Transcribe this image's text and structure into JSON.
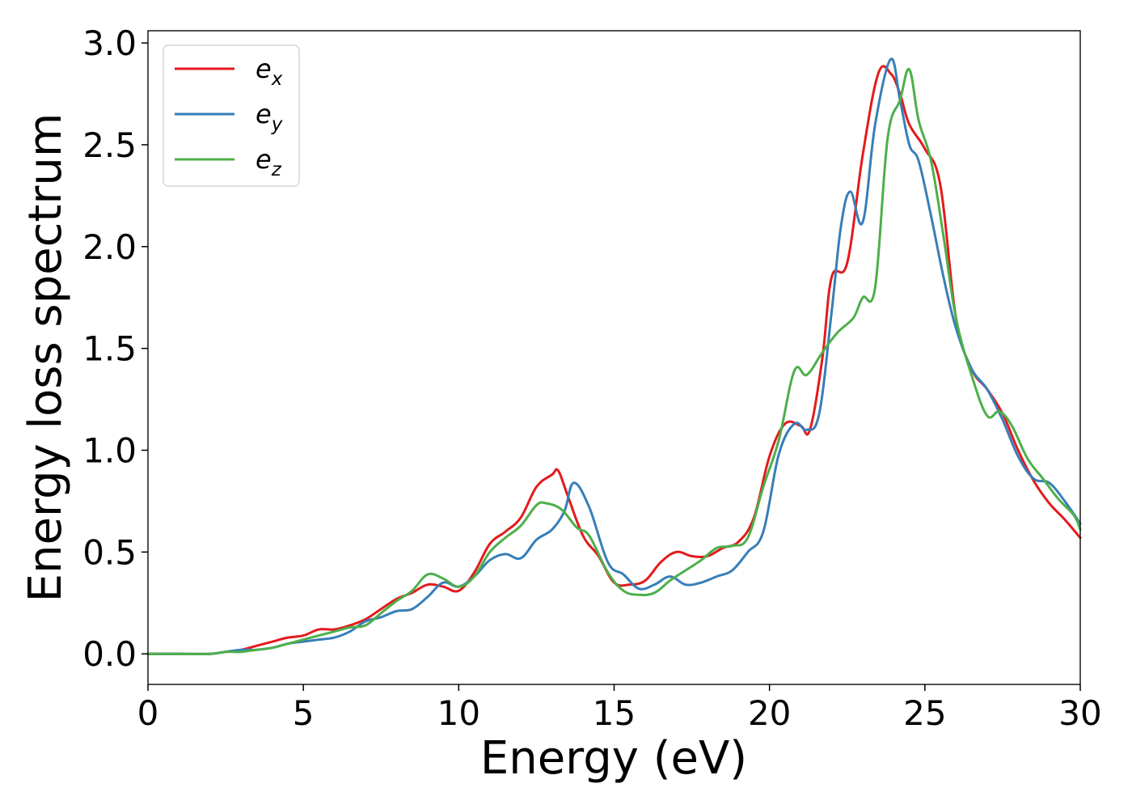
{
  "chart_data": {
    "type": "line",
    "title": "",
    "xlabel": "Energy (eV)",
    "ylabel": "Energy loss spectrum",
    "xlim": [
      0,
      30
    ],
    "ylim": [
      -0.15,
      3.06
    ],
    "xticks": [
      0,
      5,
      10,
      15,
      20,
      25,
      30
    ],
    "xtick_labels": [
      "0",
      "5",
      "10",
      "15",
      "20",
      "25",
      "30"
    ],
    "yticks": [
      0.0,
      0.5,
      1.0,
      1.5,
      2.0,
      2.5,
      3.0
    ],
    "ytick_labels": [
      "0.0",
      "0.5",
      "1.0",
      "1.5",
      "2.0",
      "2.5",
      "3.0"
    ],
    "grid": false,
    "legend_position": "top-left",
    "series": [
      {
        "name": "e",
        "subscript": "x",
        "color": "#e41a1c",
        "x": [
          0,
          1,
          2,
          2.5,
          3,
          3.5,
          4,
          4.5,
          5,
          5.5,
          6,
          6.5,
          7,
          7.5,
          8,
          8.5,
          9,
          9.5,
          10,
          10.5,
          11,
          11.5,
          12,
          12.5,
          13,
          13.2,
          13.5,
          14,
          14.5,
          15,
          15.5,
          16,
          16.5,
          17,
          17.5,
          18,
          18.5,
          19,
          19.5,
          20,
          20.5,
          21,
          21.3,
          21.7,
          22,
          22.5,
          23,
          23.5,
          23.9,
          24.2,
          24.5,
          25,
          25.5,
          26,
          26.5,
          27,
          27.5,
          28,
          28.5,
          29,
          29.5,
          30
        ],
        "y": [
          0,
          0,
          0,
          0.01,
          0.02,
          0.04,
          0.06,
          0.08,
          0.09,
          0.12,
          0.12,
          0.14,
          0.17,
          0.22,
          0.27,
          0.3,
          0.34,
          0.33,
          0.31,
          0.4,
          0.54,
          0.6,
          0.67,
          0.82,
          0.88,
          0.9,
          0.78,
          0.58,
          0.48,
          0.35,
          0.34,
          0.36,
          0.45,
          0.5,
          0.48,
          0.48,
          0.52,
          0.55,
          0.67,
          0.97,
          1.13,
          1.12,
          1.1,
          1.45,
          1.85,
          1.92,
          2.45,
          2.85,
          2.85,
          2.75,
          2.6,
          2.48,
          2.3,
          1.65,
          1.4,
          1.3,
          1.18,
          1.0,
          0.85,
          0.74,
          0.66,
          0.57
        ]
      },
      {
        "name": "e",
        "subscript": "y",
        "color": "#377eb8",
        "x": [
          0,
          1,
          2,
          2.5,
          3,
          3.5,
          4,
          4.5,
          5,
          5.5,
          6,
          6.5,
          7,
          7.5,
          8,
          8.5,
          9,
          9.5,
          10,
          10.5,
          11,
          11.5,
          12,
          12.5,
          13,
          13.4,
          13.7,
          14.2,
          14.8,
          15.3,
          15.8,
          16.3,
          16.8,
          17.3,
          17.8,
          18.3,
          18.8,
          19.3,
          19.8,
          20.3,
          20.8,
          21.2,
          21.6,
          22,
          22.3,
          22.6,
          23,
          23.4,
          23.9,
          24.2,
          24.5,
          24.8,
          25.2,
          25.6,
          26,
          26.5,
          27,
          27.5,
          28,
          28.5,
          29,
          29.5,
          30
        ],
        "y": [
          0,
          0,
          0,
          0.01,
          0.02,
          0.02,
          0.03,
          0.05,
          0.06,
          0.07,
          0.08,
          0.11,
          0.16,
          0.18,
          0.21,
          0.22,
          0.28,
          0.35,
          0.33,
          0.38,
          0.46,
          0.49,
          0.47,
          0.56,
          0.61,
          0.7,
          0.84,
          0.72,
          0.45,
          0.39,
          0.32,
          0.34,
          0.38,
          0.34,
          0.35,
          0.38,
          0.41,
          0.5,
          0.6,
          0.98,
          1.13,
          1.1,
          1.18,
          1.68,
          2.1,
          2.27,
          2.12,
          2.6,
          2.92,
          2.72,
          2.5,
          2.42,
          2.15,
          1.85,
          1.6,
          1.4,
          1.3,
          1.15,
          0.97,
          0.86,
          0.84,
          0.75,
          0.64
        ]
      },
      {
        "name": "e",
        "subscript": "z",
        "color": "#4daf4a",
        "x": [
          0,
          1,
          2,
          2.5,
          3,
          3.5,
          4,
          4.5,
          5,
          5.5,
          6,
          6.5,
          7,
          7.5,
          8,
          8.5,
          9,
          9.5,
          10,
          10.5,
          11,
          11.5,
          12,
          12.5,
          12.8,
          13.3,
          13.8,
          14.2,
          14.8,
          15.3,
          15.8,
          16.3,
          16.8,
          17.3,
          17.8,
          18.3,
          18.8,
          19.3,
          19.8,
          20.3,
          20.8,
          21.2,
          21.7,
          22.2,
          22.7,
          23,
          23.4,
          23.8,
          24.2,
          24.5,
          24.8,
          25.2,
          25.6,
          26,
          26.5,
          27,
          27.4,
          27.8,
          28.3,
          28.8,
          29.3,
          29.8,
          30
        ],
        "y": [
          0,
          0,
          0,
          0.01,
          0.01,
          0.02,
          0.03,
          0.05,
          0.07,
          0.09,
          0.11,
          0.13,
          0.14,
          0.2,
          0.26,
          0.31,
          0.39,
          0.37,
          0.33,
          0.38,
          0.5,
          0.57,
          0.63,
          0.73,
          0.74,
          0.71,
          0.62,
          0.58,
          0.4,
          0.31,
          0.29,
          0.3,
          0.36,
          0.41,
          0.46,
          0.52,
          0.53,
          0.57,
          0.82,
          1.05,
          1.39,
          1.37,
          1.48,
          1.58,
          1.65,
          1.75,
          1.8,
          2.53,
          2.72,
          2.87,
          2.62,
          2.42,
          2.05,
          1.65,
          1.37,
          1.17,
          1.19,
          1.12,
          0.96,
          0.86,
          0.76,
          0.68,
          0.61
        ]
      }
    ]
  }
}
